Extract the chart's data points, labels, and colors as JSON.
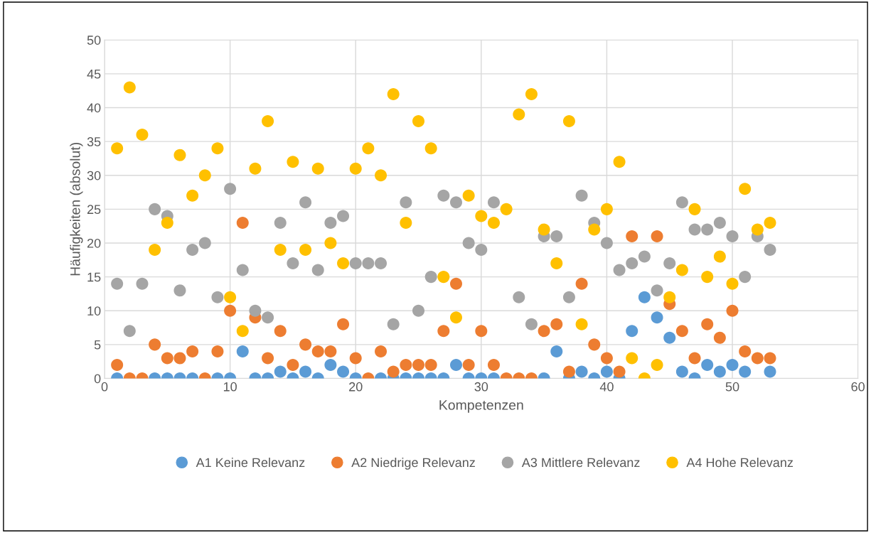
{
  "chart_data": {
    "type": "scatter",
    "xlabel": "Kompetenzen",
    "ylabel": "Häufigkeiten (absolut)",
    "x": [
      1,
      2,
      3,
      4,
      5,
      6,
      7,
      8,
      9,
      10,
      11,
      12,
      13,
      14,
      15,
      16,
      17,
      18,
      19,
      20,
      21,
      22,
      23,
      24,
      25,
      26,
      27,
      28,
      29,
      30,
      31,
      32,
      33,
      34,
      35,
      36,
      37,
      38,
      39,
      40,
      41,
      42,
      43,
      44,
      45,
      46,
      47,
      48,
      49,
      50,
      51,
      52,
      53
    ],
    "series": [
      {
        "name": "A1 Keine Relevanz",
        "color": "#5b9bd5",
        "values": [
          0,
          null,
          null,
          0,
          0,
          0,
          0,
          null,
          0,
          0,
          4,
          0,
          0,
          1,
          0,
          1,
          0,
          2,
          1,
          0,
          null,
          0,
          0,
          0,
          0,
          0,
          0,
          2,
          0,
          0,
          0,
          null,
          null,
          null,
          0,
          4,
          0,
          1,
          0,
          1,
          0,
          7,
          12,
          9,
          6,
          1,
          0,
          2,
          1,
          2,
          1,
          null,
          1
        ]
      },
      {
        "name": "A2 Niedrige Relevanz",
        "color": "#ed7d31",
        "values": [
          2,
          0,
          0,
          5,
          3,
          3,
          4,
          0,
          4,
          10,
          23,
          9,
          3,
          7,
          2,
          5,
          4,
          4,
          8,
          3,
          0,
          4,
          1,
          2,
          2,
          2,
          7,
          14,
          2,
          7,
          2,
          0,
          0,
          0,
          7,
          8,
          1,
          14,
          5,
          3,
          1,
          21,
          null,
          21,
          11,
          7,
          3,
          8,
          6,
          10,
          4,
          3,
          3
        ]
      },
      {
        "name": "A3 Mittlere Relevanz",
        "color": "#a5a5a5",
        "values": [
          14,
          7,
          14,
          25,
          24,
          13,
          19,
          20,
          12,
          28,
          16,
          10,
          9,
          23,
          17,
          26,
          16,
          23,
          24,
          17,
          17,
          17,
          8,
          26,
          10,
          15,
          27,
          26,
          20,
          19,
          26,
          null,
          12,
          8,
          21,
          21,
          12,
          27,
          23,
          20,
          16,
          17,
          18,
          13,
          17,
          26,
          22,
          22,
          23,
          21,
          15,
          21,
          19
        ]
      },
      {
        "name": "A4 Hohe Relevanz",
        "color": "#ffc000",
        "values": [
          34,
          43,
          36,
          19,
          23,
          33,
          27,
          30,
          34,
          12,
          7,
          31,
          38,
          19,
          32,
          19,
          31,
          20,
          17,
          31,
          34,
          30,
          42,
          23,
          38,
          34,
          15,
          9,
          27,
          24,
          23,
          25,
          39,
          42,
          22,
          17,
          38,
          8,
          22,
          25,
          32,
          3,
          0,
          2,
          12,
          16,
          25,
          15,
          18,
          14,
          28,
          22,
          23
        ]
      }
    ],
    "xlim": [
      0,
      60
    ],
    "xticks": [
      0,
      10,
      20,
      30,
      40,
      50,
      60
    ],
    "ylim": [
      0,
      50
    ],
    "yticks": [
      0,
      5,
      10,
      15,
      20,
      25,
      30,
      35,
      40,
      45,
      50
    ],
    "grid": true,
    "legend": "bottom",
    "marker": "circle"
  }
}
